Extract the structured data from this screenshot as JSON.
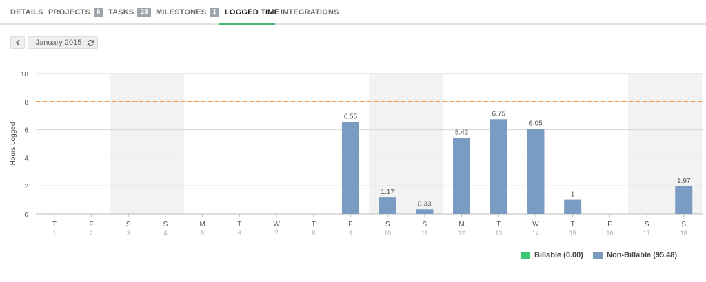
{
  "tabs": [
    {
      "label": "DETAILS"
    },
    {
      "label": "PROJECTS",
      "badge": "6"
    },
    {
      "label": "TASKS",
      "badge": "23"
    },
    {
      "label": "MILESTONES",
      "badge": "1"
    },
    {
      "label": "LOGGED TIME",
      "active": true
    },
    {
      "label": "INTEGRATIONS"
    }
  ],
  "toolbar": {
    "prev_icon": "chevron-left-icon",
    "month_label": "January 2015",
    "refresh_icon": "refresh-icon"
  },
  "colors": {
    "accent": "#3fbd6a",
    "bar": "#7b9cc2",
    "target_line": "#f59a45",
    "weekend_band": "#f2f2f2",
    "billable": "#3cc773",
    "non_billable": "#7b9cc2"
  },
  "chart_data": {
    "type": "bar",
    "ylabel": "Hours Logged",
    "ylim": [
      0,
      10
    ],
    "yticks": [
      0,
      2,
      4,
      6,
      8,
      10
    ],
    "target_line": 8,
    "grid": true,
    "categories": [
      {
        "day": "T",
        "date": "1",
        "value": 0
      },
      {
        "day": "F",
        "date": "2",
        "value": 0
      },
      {
        "day": "S",
        "date": "3",
        "value": 0,
        "weekend": true
      },
      {
        "day": "S",
        "date": "4",
        "value": 0,
        "weekend": true
      },
      {
        "day": "M",
        "date": "5",
        "value": 0
      },
      {
        "day": "T",
        "date": "6",
        "value": 0
      },
      {
        "day": "W",
        "date": "7",
        "value": 0
      },
      {
        "day": "T",
        "date": "8",
        "value": 0
      },
      {
        "day": "F",
        "date": "9",
        "value": 6.55,
        "label": "6.55"
      },
      {
        "day": "S",
        "date": "10",
        "value": 1.17,
        "label": "1.17",
        "weekend": true
      },
      {
        "day": "S",
        "date": "11",
        "value": 0.33,
        "label": "0.33",
        "weekend": true
      },
      {
        "day": "M",
        "date": "12",
        "value": 5.42,
        "label": "5.42"
      },
      {
        "day": "T",
        "date": "13",
        "value": 6.75,
        "label": "6.75"
      },
      {
        "day": "W",
        "date": "14",
        "value": 6.05,
        "label": "6.05"
      },
      {
        "day": "T",
        "date": "15",
        "value": 1,
        "label": "1"
      },
      {
        "day": "F",
        "date": "16",
        "value": 0
      },
      {
        "day": "S",
        "date": "17",
        "value": 0,
        "weekend": true
      },
      {
        "day": "S",
        "date": "18",
        "value": 1.97,
        "label": "1.97",
        "weekend": true
      }
    ],
    "legend": [
      {
        "label": "Billable (0.00)",
        "color": "#3cc773"
      },
      {
        "label": "Non-Billable (95.48)",
        "color": "#7b9cc2"
      }
    ]
  }
}
